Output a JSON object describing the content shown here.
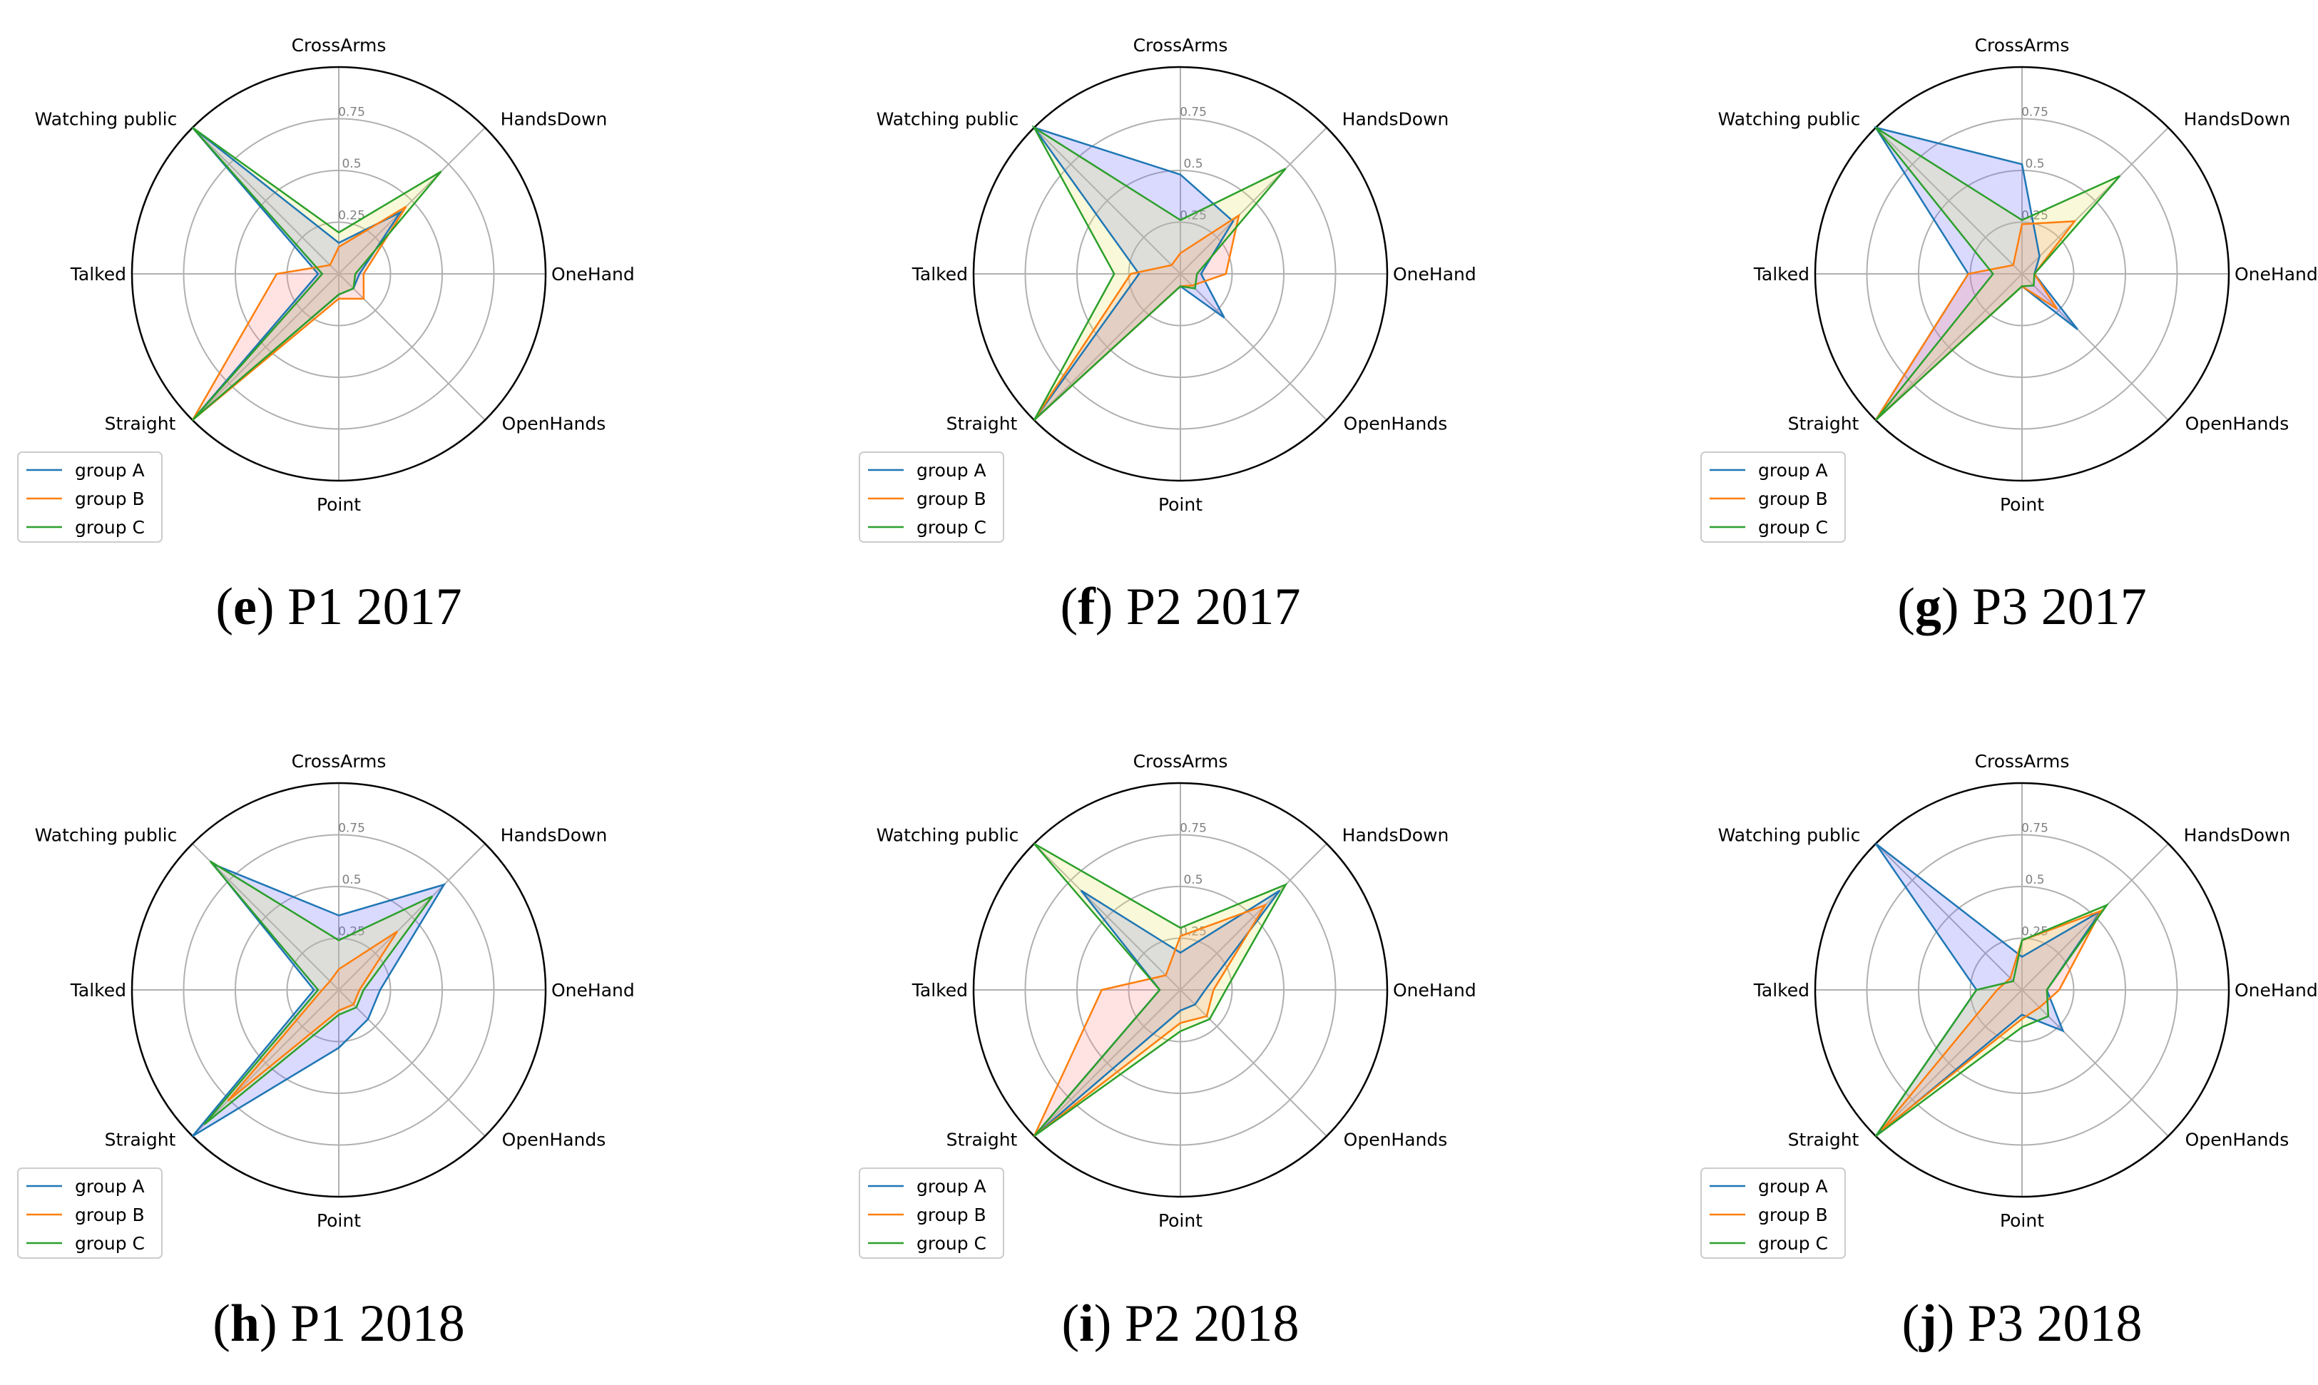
{
  "colors": {
    "group_A": "#1f77b4",
    "group_B": "#ff7f0e",
    "group_C": "#2ca02c",
    "fill_A": "#6c6cff",
    "fill_B": "#ff8f8f",
    "fill_C": "#e8e866"
  },
  "chart_data": [
    {
      "type": "radar",
      "caption_letter": "e",
      "caption_text": "P1 2017",
      "categories": [
        "CrossArms",
        "HandsDown",
        "OneHand",
        "OpenHands",
        "Point",
        "Straight",
        "Talked",
        "Watching public"
      ],
      "rticks": [
        "0.25",
        "0.5",
        "0.75"
      ],
      "rlim": [
        0,
        1
      ],
      "legend": [
        "group A",
        "group B",
        "group C"
      ],
      "legend_loc": "lower-left",
      "series": [
        {
          "name": "group A",
          "values": [
            0.15,
            0.42,
            0.1,
            0.1,
            0.1,
            1.0,
            0.1,
            1.0
          ]
        },
        {
          "name": "group B",
          "values": [
            0.13,
            0.46,
            0.12,
            0.17,
            0.12,
            1.0,
            0.3,
            0.06
          ]
        },
        {
          "name": "group C",
          "values": [
            0.2,
            0.7,
            0.08,
            0.1,
            0.1,
            1.0,
            0.08,
            1.0
          ]
        }
      ]
    },
    {
      "type": "radar",
      "caption_letter": "f",
      "caption_text": "P2 2017",
      "categories": [
        "CrossArms",
        "HandsDown",
        "OneHand",
        "OpenHands",
        "Point",
        "Straight",
        "Talked",
        "Watching public"
      ],
      "rticks": [
        "0.25",
        "0.5",
        "0.75"
      ],
      "rlim": [
        0,
        1
      ],
      "legend": [
        "group A",
        "group B",
        "group C"
      ],
      "legend_loc": "lower-left",
      "series": [
        {
          "name": "group A",
          "values": [
            0.48,
            0.36,
            0.1,
            0.3,
            0.06,
            1.0,
            0.2,
            1.0
          ]
        },
        {
          "name": "group B",
          "values": [
            0.1,
            0.4,
            0.22,
            0.08,
            0.06,
            1.0,
            0.24,
            0.06
          ]
        },
        {
          "name": "group C",
          "values": [
            0.26,
            0.72,
            0.08,
            0.1,
            0.06,
            1.0,
            0.32,
            1.0
          ]
        }
      ]
    },
    {
      "type": "radar",
      "caption_letter": "g",
      "caption_text": "P3 2017",
      "categories": [
        "CrossArms",
        "HandsDown",
        "OneHand",
        "OpenHands",
        "Point",
        "Straight",
        "Talked",
        "Watching public"
      ],
      "rticks": [
        "0.25",
        "0.5",
        "0.75"
      ],
      "rlim": [
        0,
        1
      ],
      "legend": [
        "group A",
        "group B",
        "group C"
      ],
      "legend_loc": "lower-left",
      "series": [
        {
          "name": "group A",
          "values": [
            0.53,
            0.12,
            0.06,
            0.38,
            0.06,
            1.0,
            0.26,
            1.0
          ]
        },
        {
          "name": "group B",
          "values": [
            0.24,
            0.36,
            0.06,
            0.24,
            0.06,
            1.0,
            0.26,
            0.06
          ]
        },
        {
          "name": "group C",
          "values": [
            0.26,
            0.67,
            0.06,
            0.08,
            0.06,
            1.0,
            0.14,
            1.0
          ]
        }
      ]
    },
    {
      "type": "radar",
      "caption_letter": "h",
      "caption_text": "P1 2018",
      "categories": [
        "CrossArms",
        "HandsDown",
        "OneHand",
        "OpenHands",
        "Point",
        "Straight",
        "Talked",
        "Watching public"
      ],
      "rticks": [
        "0.25",
        "0.5",
        "0.75"
      ],
      "rlim": [
        0,
        1
      ],
      "legend": [
        "group A",
        "group B",
        "group C"
      ],
      "legend_loc": "lower-left",
      "series": [
        {
          "name": "group A",
          "values": [
            0.36,
            0.72,
            0.2,
            0.2,
            0.28,
            1.0,
            0.12,
            0.86
          ]
        },
        {
          "name": "group B",
          "values": [
            0.1,
            0.4,
            0.1,
            0.1,
            0.1,
            0.76,
            0.08,
            0.06
          ]
        },
        {
          "name": "group C",
          "values": [
            0.24,
            0.64,
            0.12,
            0.12,
            0.12,
            0.92,
            0.1,
            0.88
          ]
        }
      ]
    },
    {
      "type": "radar",
      "caption_letter": "i",
      "caption_text": "P2 2018",
      "categories": [
        "CrossArms",
        "HandsDown",
        "OneHand",
        "OpenHands",
        "Point",
        "Straight",
        "Talked",
        "Watching public"
      ],
      "rticks": [
        "0.25",
        "0.5",
        "0.75"
      ],
      "rlim": [
        0,
        1
      ],
      "legend": [
        "group A",
        "group B",
        "group C"
      ],
      "legend_loc": "lower-left",
      "series": [
        {
          "name": "group A",
          "values": [
            0.18,
            0.68,
            0.12,
            0.1,
            0.1,
            1.0,
            0.1,
            0.68
          ]
        },
        {
          "name": "group B",
          "values": [
            0.26,
            0.58,
            0.16,
            0.18,
            0.16,
            1.0,
            0.38,
            0.1
          ]
        },
        {
          "name": "group C",
          "values": [
            0.3,
            0.72,
            0.22,
            0.2,
            0.2,
            1.0,
            0.1,
            1.0
          ]
        }
      ]
    },
    {
      "type": "radar",
      "caption_letter": "j",
      "caption_text": "P3 2018",
      "categories": [
        "CrossArms",
        "HandsDown",
        "OneHand",
        "OpenHands",
        "Point",
        "Straight",
        "Talked",
        "Watching public"
      ],
      "rticks": [
        "0.25",
        "0.5",
        "0.75"
      ],
      "rlim": [
        0,
        1
      ],
      "legend": [
        "group A",
        "group B",
        "group C"
      ],
      "legend_loc": "lower-left",
      "series": [
        {
          "name": "group A",
          "values": [
            0.16,
            0.54,
            0.12,
            0.28,
            0.12,
            1.0,
            0.22,
            1.0
          ]
        },
        {
          "name": "group B",
          "values": [
            0.24,
            0.54,
            0.18,
            0.12,
            0.14,
            0.96,
            0.12,
            0.08
          ]
        },
        {
          "name": "group C",
          "values": [
            0.24,
            0.58,
            0.12,
            0.18,
            0.18,
            1.0,
            0.22,
            0.06
          ]
        }
      ]
    }
  ]
}
